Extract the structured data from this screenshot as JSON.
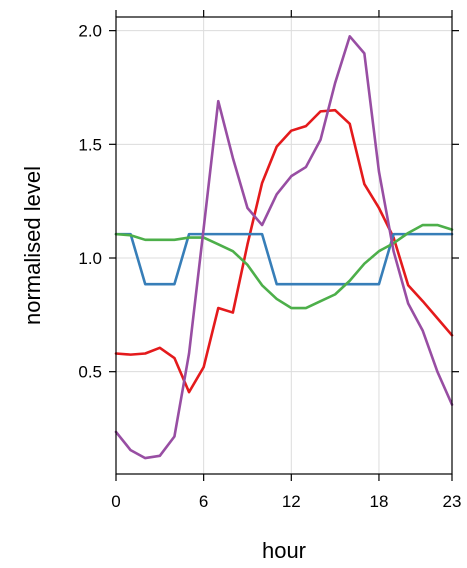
{
  "chart_data": {
    "type": "line",
    "xlabel": "hour",
    "ylabel": "normalised level",
    "xlim": [
      0,
      23
    ],
    "ylim": [
      0.05,
      2.06
    ],
    "grid": true,
    "x_ticks": [
      0,
      6,
      12,
      18,
      23
    ],
    "y_ticks": [
      0.5,
      1.0,
      1.5,
      2.0
    ],
    "y_tick_labels": [
      "0.5",
      "1.0",
      "1.5",
      "2.0"
    ],
    "x": [
      0,
      1,
      2,
      3,
      4,
      5,
      6,
      7,
      8,
      9,
      10,
      11,
      12,
      13,
      14,
      15,
      16,
      17,
      18,
      19,
      20,
      21,
      22,
      23
    ],
    "colors": {
      "grid": "#dcdcdc",
      "axis": "#000000"
    },
    "series": [
      {
        "color": "#e41a1c",
        "values": [
          0.58,
          0.575,
          0.58,
          0.605,
          0.56,
          0.41,
          0.52,
          0.78,
          0.76,
          1.06,
          1.33,
          1.49,
          1.56,
          1.58,
          1.645,
          1.65,
          1.59,
          1.325,
          1.22,
          1.09,
          0.88,
          0.81,
          0.735,
          0.66
        ]
      },
      {
        "color": "#377eb8",
        "values": [
          1.105,
          1.105,
          0.885,
          0.885,
          0.885,
          1.105,
          1.105,
          1.105,
          1.105,
          1.105,
          1.105,
          0.885,
          0.885,
          0.885,
          0.885,
          0.885,
          0.885,
          0.885,
          0.885,
          1.105,
          1.105,
          1.105,
          1.105,
          1.105
        ]
      },
      {
        "color": "#4daf4a",
        "values": [
          1.105,
          1.1,
          1.08,
          1.08,
          1.08,
          1.09,
          1.09,
          1.06,
          1.03,
          0.97,
          0.88,
          0.82,
          0.78,
          0.78,
          0.81,
          0.84,
          0.9,
          0.975,
          1.03,
          1.065,
          1.11,
          1.145,
          1.145,
          1.125
        ]
      },
      {
        "color": "#984ea3",
        "values": [
          0.235,
          0.155,
          0.12,
          0.13,
          0.215,
          0.58,
          1.13,
          1.69,
          1.44,
          1.22,
          1.145,
          1.28,
          1.36,
          1.4,
          1.52,
          1.77,
          1.975,
          1.9,
          1.38,
          1.03,
          0.8,
          0.68,
          0.5,
          0.355
        ]
      }
    ]
  }
}
